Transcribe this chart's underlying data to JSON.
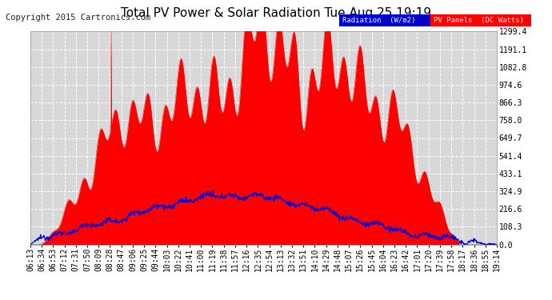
{
  "title": "Total PV Power & Solar Radiation Tue Aug 25 19:19",
  "copyright": "Copyright 2015 Cartronics.com",
  "y_ticks": [
    0.0,
    108.3,
    216.6,
    324.9,
    433.1,
    541.4,
    649.7,
    758.0,
    866.3,
    974.6,
    1082.8,
    1191.1,
    1299.4
  ],
  "ylim": [
    0,
    1299.4
  ],
  "bg_color": "#ffffff",
  "plot_bg_color": "#d8d8d8",
  "grid_color": "#ffffff",
  "red_color": "#ff0000",
  "blue_color": "#0000dd",
  "title_fontsize": 11,
  "tick_fontsize": 7,
  "copyright_fontsize": 7.5,
  "x_tick_labels": [
    "06:13",
    "06:34",
    "06:53",
    "07:12",
    "07:31",
    "07:50",
    "08:09",
    "08:28",
    "08:47",
    "09:06",
    "09:25",
    "09:44",
    "10:03",
    "10:22",
    "10:41",
    "11:00",
    "11:19",
    "11:38",
    "11:57",
    "12:16",
    "12:35",
    "12:54",
    "13:13",
    "13:32",
    "13:51",
    "14:10",
    "14:29",
    "14:48",
    "15:07",
    "15:26",
    "15:45",
    "16:04",
    "16:23",
    "16:42",
    "17:01",
    "17:20",
    "17:39",
    "17:58",
    "18:17",
    "18:36",
    "18:55",
    "19:14"
  ]
}
